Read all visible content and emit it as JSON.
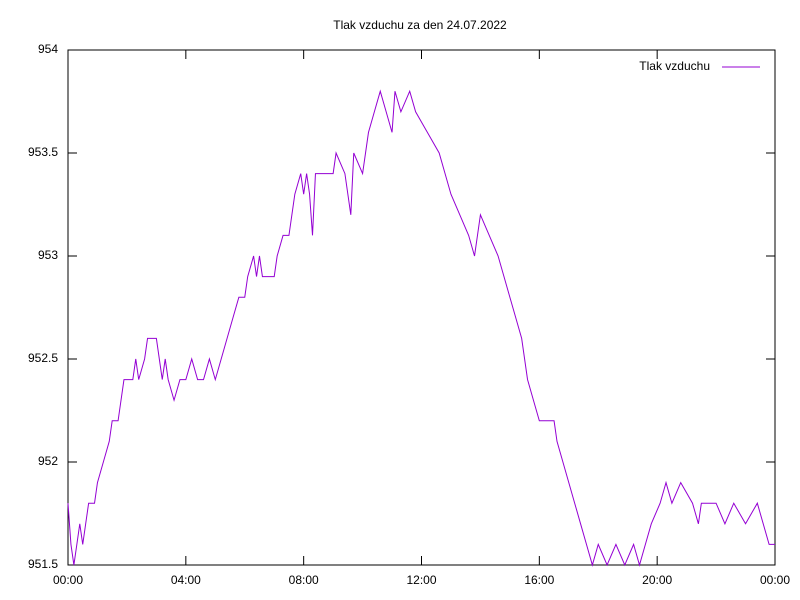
{
  "chart_data": {
    "type": "line",
    "title": "Tlak vzduchu za den 24.07.2022",
    "x": [
      0,
      0.1,
      0.2,
      0.3,
      0.4,
      0.5,
      0.6,
      0.7,
      0.9,
      1.0,
      1.2,
      1.4,
      1.5,
      1.7,
      1.8,
      1.9,
      2.2,
      2.3,
      2.4,
      2.6,
      2.7,
      3.0,
      3.1,
      3.2,
      3.3,
      3.4,
      3.6,
      3.8,
      4.0,
      4.2,
      4.4,
      4.6,
      4.8,
      5.0,
      5.2,
      5.4,
      5.6,
      5.8,
      6.0,
      6.1,
      6.3,
      6.4,
      6.5,
      6.6,
      7.0,
      7.1,
      7.3,
      7.5,
      7.6,
      7.7,
      7.9,
      8.0,
      8.1,
      8.2,
      8.3,
      8.4,
      9.0,
      9.1,
      9.4,
      9.6,
      9.7,
      10.0,
      10.1,
      10.2,
      10.4,
      10.6,
      10.8,
      11.0,
      11.1,
      11.3,
      11.6,
      11.8,
      12.2,
      12.6,
      12.8,
      13.0,
      13.3,
      13.6,
      13.8,
      14.0,
      14.3,
      14.6,
      14.8,
      15.0,
      15.2,
      15.4,
      15.6,
      15.8,
      16.0,
      16.5,
      16.6,
      16.8,
      17.0,
      17.2,
      17.4,
      17.6,
      17.8,
      18.0,
      18.3,
      18.6,
      18.9,
      19.2,
      19.4,
      19.6,
      19.8,
      20.1,
      20.3,
      20.5,
      20.8,
      21.2,
      21.4,
      21.5,
      22.0,
      22.3,
      22.6,
      23.0,
      23.4,
      23.8,
      24.0
    ],
    "series": [
      {
        "name": "Tlak vzduchu",
        "color": "#9400d3",
        "values": [
          951.8,
          951.6,
          951.5,
          951.6,
          951.7,
          951.6,
          951.7,
          951.8,
          951.8,
          951.9,
          952.0,
          952.1,
          952.2,
          952.2,
          952.3,
          952.4,
          952.4,
          952.5,
          952.4,
          952.5,
          952.6,
          952.6,
          952.5,
          952.4,
          952.5,
          952.4,
          952.3,
          952.4,
          952.4,
          952.5,
          952.4,
          952.4,
          952.5,
          952.4,
          952.5,
          952.6,
          952.7,
          952.8,
          952.8,
          952.9,
          953.0,
          952.9,
          953.0,
          952.9,
          952.9,
          953.0,
          953.1,
          953.1,
          953.2,
          953.3,
          953.4,
          953.3,
          953.4,
          953.3,
          953.1,
          953.4,
          953.4,
          953.5,
          953.4,
          953.2,
          953.5,
          953.4,
          953.5,
          953.6,
          953.7,
          953.8,
          953.7,
          953.6,
          953.8,
          953.7,
          953.8,
          953.7,
          953.6,
          953.5,
          953.4,
          953.3,
          953.2,
          953.1,
          953.0,
          953.2,
          953.1,
          953.0,
          952.9,
          952.8,
          952.7,
          952.6,
          952.4,
          952.3,
          952.2,
          952.2,
          952.1,
          952.0,
          951.9,
          951.8,
          951.7,
          951.6,
          951.5,
          951.6,
          951.5,
          951.6,
          951.5,
          951.6,
          951.5,
          951.6,
          951.7,
          951.8,
          951.9,
          951.8,
          951.9,
          951.8,
          951.7,
          951.8,
          951.8,
          951.7,
          951.8,
          951.7,
          951.8,
          951.6,
          951.6
        ]
      }
    ],
    "xlim": [
      0,
      24
    ],
    "xticks": [
      {
        "value": 0,
        "label": "00:00"
      },
      {
        "value": 4,
        "label": "04:00"
      },
      {
        "value": 8,
        "label": "08:00"
      },
      {
        "value": 12,
        "label": "12:00"
      },
      {
        "value": 16,
        "label": "16:00"
      },
      {
        "value": 20,
        "label": "20:00"
      },
      {
        "value": 24,
        "label": "00:00"
      }
    ],
    "ylim": [
      951.5,
      954
    ],
    "yticks": [
      951.5,
      952,
      952.5,
      953,
      953.5,
      954
    ],
    "legend": "top-right"
  }
}
